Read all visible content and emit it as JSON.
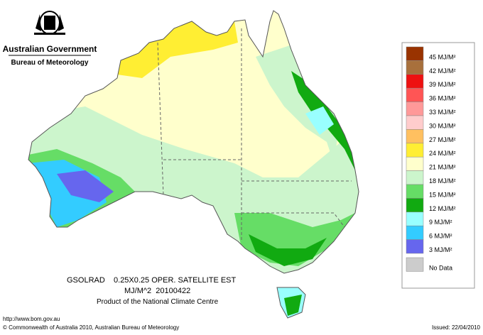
{
  "header": {
    "agency": "Australian Government",
    "bureau": "Bureau of Meteorology"
  },
  "map": {
    "title_line1": "GSOLRAD    0.25X0.25 OPER. SATELLITE EST",
    "title_line2": "MJ/M^2  20100422",
    "credit": "Product of the National Climate Centre"
  },
  "legend": {
    "items": [
      {
        "label": "45 MJ/M²",
        "color": "#993300"
      },
      {
        "label": "42 MJ/M²",
        "color": "#a8703c"
      },
      {
        "label": "39 MJ/M²",
        "color": "#ee1111"
      },
      {
        "label": "36 MJ/M²",
        "color": "#ff5555"
      },
      {
        "label": "33 MJ/M²",
        "color": "#ff9999"
      },
      {
        "label": "30 MJ/M²",
        "color": "#ffcccc"
      },
      {
        "label": "27 MJ/M²",
        "color": "#ffc060"
      },
      {
        "label": "24 MJ/M²",
        "color": "#ffee33"
      },
      {
        "label": "21 MJ/M²",
        "color": "#ffffcc"
      },
      {
        "label": "18 MJ/M²",
        "color": "#ccf5cc"
      },
      {
        "label": "15 MJ/M²",
        "color": "#66dd66"
      },
      {
        "label": "12 MJ/M²",
        "color": "#11aa11"
      },
      {
        "label": "9 MJ/M²",
        "color": "#99ffff"
      },
      {
        "label": "6 MJ/M²",
        "color": "#33ccff"
      },
      {
        "label": "3 MJ/M²",
        "color": "#6666ee"
      },
      {
        "label": "No Data",
        "color": "#cccccc"
      }
    ]
  },
  "footer": {
    "url": "http://www.bom.gov.au",
    "copyright": "© Commonwealth of Australia 2010, Australian Bureau of Meteorology",
    "issued": "Issued: 22/04/2010"
  }
}
